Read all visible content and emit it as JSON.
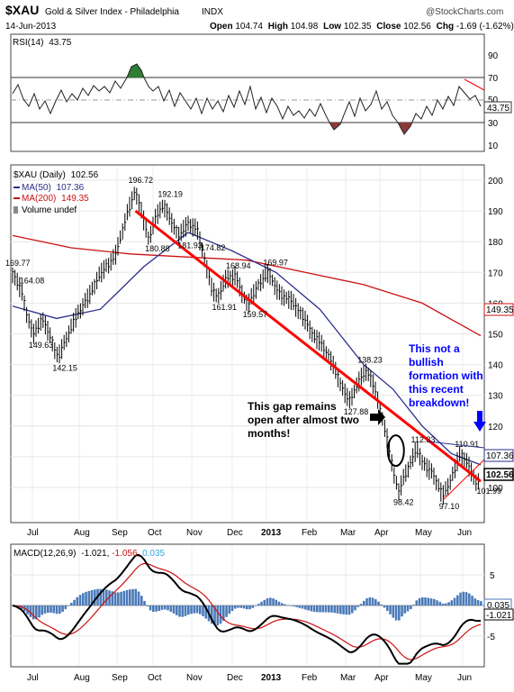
{
  "header": {
    "symbol": "$XAU",
    "name": "Gold & Silver Index - Philadelphia",
    "exchange": "INDX",
    "date": "14-Jun-2013",
    "source": "@StockCharts.com",
    "open_label": "Open",
    "open": "104.74",
    "high_label": "High",
    "high": "104.98",
    "low_label": "Low",
    "low": "102.35",
    "close_label": "Close",
    "close": "102.56",
    "chg_label": "Chg",
    "chg": "-1.69 (-1.62%)",
    "down_glyph": "▼"
  },
  "colors": {
    "price": "#000000",
    "ma50": "#2b2e8c",
    "ma200": "#cc1111",
    "trend": "#ff0000",
    "annotation_blue": "#0000ff",
    "rsi_overbought_fill": "#2e7d32",
    "rsi_oversold_fill": "#8b3a3a",
    "macd_hist": "#4a7ab8",
    "signal": "#cc1111",
    "ema_text": "#36a9e1"
  },
  "rsi": {
    "label": "RSI(14)",
    "value": "43.75",
    "levels": [
      "90",
      "70",
      "50",
      "30",
      "10"
    ]
  },
  "price_legend": {
    "title": "$XAU (Daily)",
    "close": "102.56",
    "ma50_label": "MA(50)",
    "ma50": "107.36",
    "ma200_label": "MA(200)",
    "ma200": "149.35",
    "volume_label": "Volume undef"
  },
  "price_axis": [
    "200",
    "190",
    "180",
    "170",
    "160",
    "150",
    "140",
    "130",
    "120",
    "110",
    "100"
  ],
  "right_tags": {
    "ma200": "149.35",
    "ma50": "107.36",
    "close": "102.56",
    "rsi": "43.75"
  },
  "macd": {
    "label": "MACD(12,26,9)",
    "macd": "-1.021",
    "signal": "-1.056",
    "hist": "0.035",
    "axis": [
      "5",
      "0",
      "-5"
    ],
    "tag_hist": "0.035",
    "tag_macd": "-1.021"
  },
  "months": [
    "Jul",
    "Aug",
    "Sep",
    "Oct",
    "Nov",
    "Dec",
    "2013",
    "Feb",
    "Mar",
    "Apr",
    "May",
    "Jun"
  ],
  "notes": {
    "gap": "This gap remains open after almost two months!",
    "bullish": "This not a bullish formation with this recent breakdown!"
  },
  "chart_data": {
    "type": "line",
    "title": "$XAU Gold & Silver Index - Philadelphia",
    "ylim": [
      95,
      203
    ],
    "x_months": [
      "Jul",
      "Aug",
      "Sep",
      "Oct",
      "Nov",
      "Dec",
      "2013",
      "Feb",
      "Mar",
      "Apr",
      "May",
      "Jun"
    ],
    "annotated_points": [
      {
        "x": "late Jun 2012",
        "y": 169.77
      },
      {
        "x": "early Jul 2012",
        "y": 164.08
      },
      {
        "x": "mid Jul 2012",
        "y": 149.63
      },
      {
        "x": "late Jul 2012",
        "y": 142.15
      },
      {
        "x": "mid Sep 2012",
        "y": 196.72
      },
      {
        "x": "late Sep 2012",
        "y": 180.88
      },
      {
        "x": "early Oct 2012",
        "y": 192.19
      },
      {
        "x": "mid Oct 2012",
        "y": 181.93
      },
      {
        "x": "late Oct 2012",
        "y": 174.82
      },
      {
        "x": "early Nov 2012",
        "y": 161.91
      },
      {
        "x": "mid Nov 2012",
        "y": 168.94
      },
      {
        "x": "late Nov 2012",
        "y": 159.57
      },
      {
        "x": "early Dec 2012",
        "y": 169.97
      },
      {
        "x": "mid Mar 2013",
        "y": 127.88
      },
      {
        "x": "late Mar 2013",
        "y": 138.23
      },
      {
        "x": "mid Apr 2013",
        "y": 98.42
      },
      {
        "x": "late Apr 2013",
        "y": 112.33
      },
      {
        "x": "mid May 2013",
        "y": 97.1
      },
      {
        "x": "early Jun 2013",
        "y": 110.91
      },
      {
        "x": "mid Jun 2013",
        "y": 101.99
      }
    ],
    "price_series": [
      {
        "t": 0,
        "v": 169.77
      },
      {
        "t": 6,
        "v": 164.08
      },
      {
        "t": 10,
        "v": 156
      },
      {
        "t": 14,
        "v": 149.63
      },
      {
        "t": 20,
        "v": 155
      },
      {
        "t": 25,
        "v": 150
      },
      {
        "t": 31,
        "v": 142.15
      },
      {
        "t": 38,
        "v": 150
      },
      {
        "t": 45,
        "v": 157
      },
      {
        "t": 52,
        "v": 162
      },
      {
        "t": 58,
        "v": 168
      },
      {
        "t": 64,
        "v": 172
      },
      {
        "t": 70,
        "v": 175
      },
      {
        "t": 74,
        "v": 182
      },
      {
        "t": 79,
        "v": 190
      },
      {
        "t": 84,
        "v": 196.72
      },
      {
        "t": 89,
        "v": 188
      },
      {
        "t": 93,
        "v": 180.88
      },
      {
        "t": 98,
        "v": 188
      },
      {
        "t": 103,
        "v": 192.19
      },
      {
        "t": 109,
        "v": 186
      },
      {
        "t": 114,
        "v": 181.93
      },
      {
        "t": 120,
        "v": 186
      },
      {
        "t": 126,
        "v": 184
      },
      {
        "t": 131,
        "v": 174.82
      },
      {
        "t": 136,
        "v": 165
      },
      {
        "t": 140,
        "v": 161.91
      },
      {
        "t": 146,
        "v": 168
      },
      {
        "t": 152,
        "v": 168.94
      },
      {
        "t": 157,
        "v": 163
      },
      {
        "t": 161,
        "v": 159.57
      },
      {
        "t": 168,
        "v": 166
      },
      {
        "t": 175,
        "v": 169.97
      },
      {
        "t": 182,
        "v": 163
      },
      {
        "t": 190,
        "v": 161
      },
      {
        "t": 198,
        "v": 156
      },
      {
        "t": 205,
        "v": 150
      },
      {
        "t": 212,
        "v": 146
      },
      {
        "t": 218,
        "v": 141
      },
      {
        "t": 224,
        "v": 134
      },
      {
        "t": 230,
        "v": 127.88
      },
      {
        "t": 236,
        "v": 134
      },
      {
        "t": 242,
        "v": 138.23
      },
      {
        "t": 247,
        "v": 133
      },
      {
        "t": 252,
        "v": 124
      },
      {
        "t": 256,
        "v": 116
      },
      {
        "t": 260,
        "v": 106
      },
      {
        "t": 264,
        "v": 98.42
      },
      {
        "t": 268,
        "v": 104
      },
      {
        "t": 272,
        "v": 108
      },
      {
        "t": 276,
        "v": 112.33
      },
      {
        "t": 282,
        "v": 107
      },
      {
        "t": 288,
        "v": 104
      },
      {
        "t": 294,
        "v": 97.1
      },
      {
        "t": 300,
        "v": 103
      },
      {
        "t": 306,
        "v": 110.91
      },
      {
        "t": 311,
        "v": 108
      },
      {
        "t": 316,
        "v": 101.99
      },
      {
        "t": 320,
        "v": 102.56
      }
    ],
    "ma50_series": [
      {
        "t": 0,
        "v": 159
      },
      {
        "t": 30,
        "v": 155
      },
      {
        "t": 60,
        "v": 158
      },
      {
        "t": 90,
        "v": 172
      },
      {
        "t": 120,
        "v": 183
      },
      {
        "t": 150,
        "v": 177
      },
      {
        "t": 180,
        "v": 170
      },
      {
        "t": 210,
        "v": 158
      },
      {
        "t": 240,
        "v": 140
      },
      {
        "t": 260,
        "v": 132
      },
      {
        "t": 280,
        "v": 120
      },
      {
        "t": 300,
        "v": 111
      },
      {
        "t": 320,
        "v": 107.36
      }
    ],
    "ma200_series": [
      {
        "t": 0,
        "v": 182
      },
      {
        "t": 40,
        "v": 178
      },
      {
        "t": 80,
        "v": 176
      },
      {
        "t": 120,
        "v": 175
      },
      {
        "t": 160,
        "v": 174
      },
      {
        "t": 200,
        "v": 170
      },
      {
        "t": 240,
        "v": 166
      },
      {
        "t": 280,
        "v": 160
      },
      {
        "t": 320,
        "v": 149.35
      }
    ],
    "trendline": {
      "from": {
        "t": 84,
        "v": 190
      },
      "to": {
        "t": 320,
        "v": 102
      }
    },
    "gap_marker": {
      "t": 262,
      "v": 112
    },
    "rsi_ylim": [
      0,
      100
    ],
    "macd_ylim": [
      -10,
      10
    ],
    "legend": [
      "$XAU (Daily) 102.56",
      "MA(50) 107.36",
      "MA(200) 149.35",
      "Volume undef"
    ],
    "grid": true,
    "legend_position": "top-left"
  }
}
